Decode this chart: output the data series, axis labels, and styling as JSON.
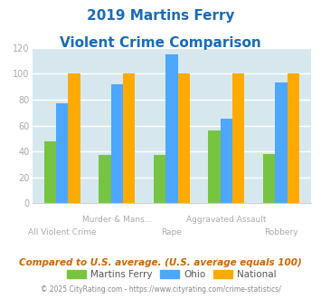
{
  "title_line1": "2019 Martins Ferry",
  "title_line2": "Violent Crime Comparison",
  "categories": [
    "All Violent Crime",
    "Murder & Mans...",
    "Rape",
    "Aggravated Assault",
    "Robbery"
  ],
  "series": {
    "Martins Ferry": [
      48,
      37,
      37,
      56,
      38
    ],
    "Ohio": [
      77,
      92,
      115,
      65,
      93
    ],
    "National": [
      100,
      100,
      100,
      100,
      100
    ]
  },
  "colors": {
    "Martins Ferry": "#76c442",
    "Ohio": "#4da6ff",
    "National": "#ffaa00"
  },
  "ylim": [
    0,
    120
  ],
  "yticks": [
    0,
    20,
    40,
    60,
    80,
    100,
    120
  ],
  "plot_bg_color": "#d6e8ee",
  "title_color": "#1a6bb5",
  "subtitle_note": "Compared to U.S. average. (U.S. average equals 100)",
  "footer": "© 2025 CityRating.com - https://www.cityrating.com/crime-statistics/",
  "subtitle_color": "#cc6600",
  "footer_color": "#888888",
  "bar_width": 0.22,
  "grid_color": "#ffffff",
  "axis_label_color": "#aaaaaa"
}
